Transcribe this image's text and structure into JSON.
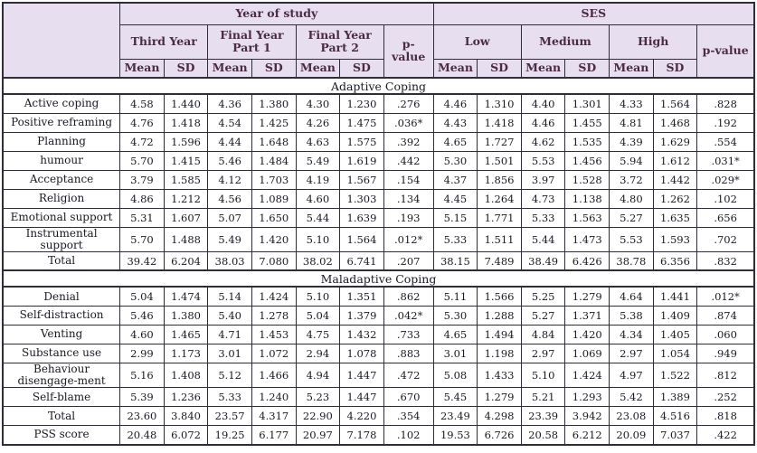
{
  "colors": {
    "header_bg": "#e7def0",
    "header_text": "#4b2a45",
    "body_text": "#191923",
    "border": "#2e2d38"
  },
  "table": {
    "group_year": "Year of study",
    "group_ses": "SES",
    "year_groups": [
      "Third Year",
      "Final Year Part 1",
      "Final Year Part 2"
    ],
    "ses_groups": [
      "Low",
      "Medium",
      "High"
    ],
    "mean_label": "Mean",
    "sd_label": "SD",
    "p_label": "p-value",
    "sections": [
      {
        "title": "Adaptive Coping",
        "rows": [
          {
            "label": "Active coping",
            "values": [
              "4.58",
              "1.440",
              "4.36",
              "1.380",
              "4.30",
              "1.230",
              ".276",
              "4.46",
              "1.310",
              "4.40",
              "1.301",
              "4.33",
              "1.564",
              ".828"
            ]
          },
          {
            "label": "Positive reframing",
            "values": [
              "4.76",
              "1.418",
              "4.54",
              "1.425",
              "4.26",
              "1.475",
              ".036*",
              "4.43",
              "1.418",
              "4.46",
              "1.455",
              "4.81",
              "1.468",
              ".192"
            ]
          },
          {
            "label": "Planning",
            "values": [
              "4.72",
              "1.596",
              "4.44",
              "1.648",
              "4.63",
              "1.575",
              ".392",
              "4.65",
              "1.727",
              "4.62",
              "1.535",
              "4.39",
              "1.629",
              ".554"
            ]
          },
          {
            "label": "humour",
            "values": [
              "5.70",
              "1.415",
              "5.46",
              "1.484",
              "5.49",
              "1.619",
              ".442",
              "5.30",
              "1.501",
              "5.53",
              "1.456",
              "5.94",
              "1.612",
              ".031*"
            ]
          },
          {
            "label": "Acceptance",
            "values": [
              "3.79",
              "1.585",
              "4.12",
              "1.703",
              "4.19",
              "1.567",
              ".154",
              "4.37",
              "1.856",
              "3.97",
              "1.528",
              "3.72",
              "1.442",
              ".029*"
            ]
          },
          {
            "label": "Religion",
            "values": [
              "4.86",
              "1.212",
              "4.56",
              "1.089",
              "4.60",
              "1.303",
              ".134",
              "4.45",
              "1.264",
              "4.73",
              "1.138",
              "4.80",
              "1.262",
              ".102"
            ]
          },
          {
            "label": "Emotional support",
            "values": [
              "5.31",
              "1.607",
              "5.07",
              "1.650",
              "5.44",
              "1.639",
              ".193",
              "5.15",
              "1.771",
              "5.33",
              "1.563",
              "5.27",
              "1.635",
              ".656"
            ]
          },
          {
            "label": "Instrumental support",
            "values": [
              "5.70",
              "1.488",
              "5.49",
              "1.420",
              "5.10",
              "1.564",
              ".012*",
              "5.33",
              "1.511",
              "5.44",
              "1.473",
              "5.53",
              "1.593",
              ".702"
            ]
          },
          {
            "label": "Total",
            "values": [
              "39.42",
              "6.204",
              "38.03",
              "7.080",
              "38.02",
              "6.741",
              ".207",
              "38.15",
              "7.489",
              "38.49",
              "6.426",
              "38.78",
              "6.356",
              ".832"
            ]
          }
        ]
      },
      {
        "title": "Maladaptive Coping",
        "rows": [
          {
            "label": "Denial",
            "values": [
              "5.04",
              "1.474",
              "5.14",
              "1.424",
              "5.10",
              "1.351",
              ".862",
              "5.11",
              "1.566",
              "5.25",
              "1.279",
              "4.64",
              "1.441",
              ".012*"
            ]
          },
          {
            "label": "Self-distraction",
            "values": [
              "5.46",
              "1.380",
              "5.40",
              "1.278",
              "5.04",
              "1.379",
              ".042*",
              "5.30",
              "1.288",
              "5.27",
              "1.371",
              "5.38",
              "1.409",
              ".874"
            ]
          },
          {
            "label": "Venting",
            "values": [
              "4.60",
              "1.465",
              "4.71",
              "1.453",
              "4.75",
              "1.432",
              ".733",
              "4.65",
              "1.494",
              "4.84",
              "1.420",
              "4.34",
              "1.405",
              ".060"
            ]
          },
          {
            "label": "Substance use",
            "values": [
              "2.99",
              "1.173",
              "3.01",
              "1.072",
              "2.94",
              "1.078",
              ".883",
              "3.01",
              "1.198",
              "2.97",
              "1.069",
              "2.97",
              "1.054",
              ".949"
            ]
          },
          {
            "label": "Behaviour disengage-ment",
            "values": [
              "5.16",
              "1.408",
              "5.12",
              "1.466",
              "4.94",
              "1.447",
              ".472",
              "5.08",
              "1.433",
              "5.10",
              "1.424",
              "4.97",
              "1.522",
              ".812"
            ]
          },
          {
            "label": "Self-blame",
            "values": [
              "5.39",
              "1.236",
              "5.33",
              "1.240",
              "5.23",
              "1.447",
              ".670",
              "5.45",
              "1.279",
              "5.21",
              "1.293",
              "5.42",
              "1.389",
              ".252"
            ]
          },
          {
            "label": "Total",
            "values": [
              "23.60",
              "3.840",
              "23.57",
              "4.317",
              "22.90",
              "4.220",
              ".354",
              "23.49",
              "4.298",
              "23.39",
              "3.942",
              "23.08",
              "4.516",
              ".818"
            ]
          }
        ]
      }
    ],
    "footer_rows": [
      {
        "label": "PSS score",
        "values": [
          "20.48",
          "6.072",
          "19.25",
          "6.177",
          "20.97",
          "7.178",
          ".102",
          "19.53",
          "6.726",
          "20.58",
          "6.212",
          "20.09",
          "7.037",
          ".422"
        ]
      }
    ]
  }
}
